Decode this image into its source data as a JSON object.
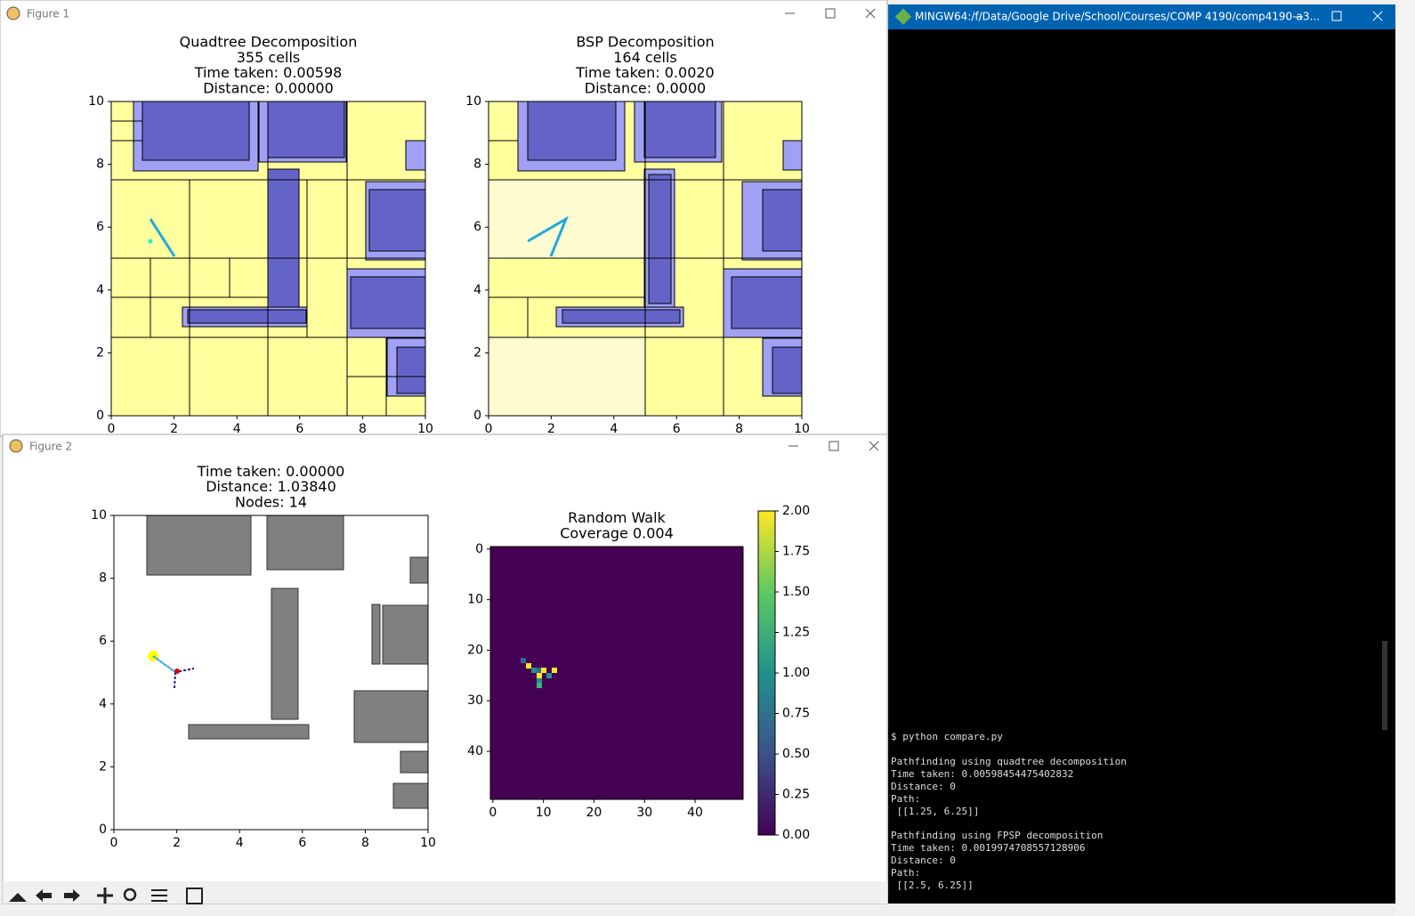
{
  "figure1": {
    "window_title": "Figure 1",
    "plots": [
      {
        "title": [
          "Quadtree Decomposition",
          "355 cells",
          "Time taken: 0.00598",
          "Distance: 0.00000"
        ],
        "xlim": [
          0,
          10
        ],
        "ylim": [
          0,
          10
        ],
        "xticks": [
          0,
          2,
          4,
          6,
          8,
          10
        ],
        "yticks": [
          0,
          2,
          4,
          6,
          8,
          10
        ]
      },
      {
        "title": [
          "BSP Decomposition",
          "164 cells",
          "Time taken: 0.0020",
          "Distance: 0.0000"
        ],
        "xlim": [
          0,
          10
        ],
        "ylim": [
          0,
          10
        ],
        "xticks": [
          0,
          2,
          4,
          6,
          8,
          10
        ],
        "yticks": [
          0,
          2,
          4,
          6,
          8,
          10
        ]
      }
    ]
  },
  "figure2": {
    "window_title": "Figure 2",
    "plots": [
      {
        "title": [
          "Time taken: 0.00000",
          "Distance: 1.03840",
          "Nodes: 14"
        ],
        "xlim": [
          0,
          10
        ],
        "ylim": [
          0,
          10
        ],
        "xticks": [
          0,
          2,
          4,
          6,
          8,
          10
        ],
        "yticks": [
          0,
          2,
          4,
          6,
          8,
          10
        ]
      },
      {
        "title": [
          "Random Walk",
          "Coverage 0.004"
        ],
        "xlim": [
          -0.5,
          49.5
        ],
        "ylim": [
          49.5,
          -0.5
        ],
        "xticks": [
          0,
          10,
          20,
          30,
          40
        ],
        "yticks": [
          0,
          10,
          20,
          30,
          40
        ]
      }
    ],
    "colorbar": {
      "ylim": [
        0,
        2
      ],
      "yticks": [
        {
          "value": 0,
          "label": "0.00"
        },
        0.25,
        {
          "value": 0.5,
          "label": "0.50"
        },
        0.75,
        {
          "value": 1,
          "label": "1.00"
        },
        1.25,
        {
          "value": 1.5,
          "label": "1.50"
        },
        1.75,
        {
          "value": 2,
          "label": "2.00"
        }
      ]
    }
  },
  "terminal": {
    "window_title": "MINGW64:/f/Data/Google Drive/School/Courses/COMP 4190/comp4190-a3...",
    "lines": [
      "$ python compare.py",
      "Pathfinding using quadtree decomposition",
      "Time taken: 0.00598454475402832",
      "Distance: 0",
      "Path:",
      " [[1.25, 6.25]]",
      "Pathfinding using FPSP decomposition",
      "Time taken: 0.0019974708557128906",
      "Distance: 0",
      "Path:",
      " [[2.5, 6.25]]"
    ]
  }
}
